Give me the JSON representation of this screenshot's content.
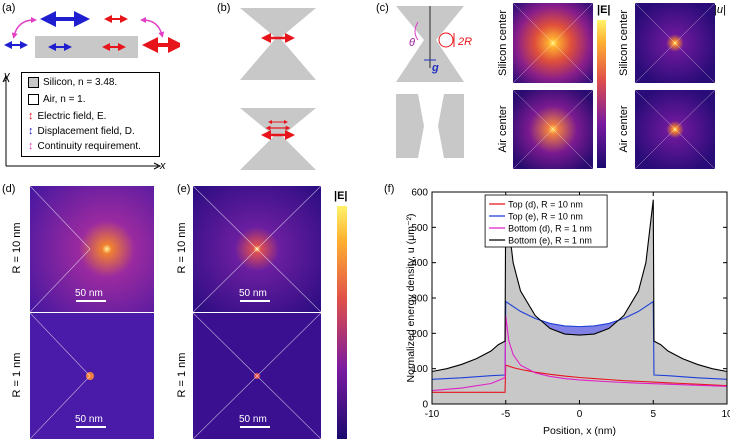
{
  "panel_labels": {
    "a": "(a)",
    "b": "(b)",
    "c": "(c)",
    "d": "(d)",
    "e": "(e)",
    "f": "(f)"
  },
  "panel_a": {
    "axis_y": "y",
    "axis_x": "x",
    "legend": [
      {
        "label": "Silicon, n = 3.48.",
        "kind": "swatch",
        "color": "#c8c8c8"
      },
      {
        "label": "Air, n = 1.",
        "kind": "swatch",
        "color": "#ffffff"
      },
      {
        "label": "Electric field, E.",
        "kind": "arrow",
        "color": "#e8141b"
      },
      {
        "label": "Displacement field, D.",
        "kind": "arrow",
        "color": "#1f1fcf"
      },
      {
        "label": "Continuity requirement.",
        "kind": "arrow",
        "color": "#e040c8"
      }
    ]
  },
  "panel_c": {
    "theta": "θ",
    "two_r": "2R",
    "g": "g",
    "row_labels": [
      "Silicon center",
      "Air center"
    ],
    "cbar1": "|E|",
    "cbar2": "|u|"
  },
  "panel_d": {
    "rows": [
      "R = 10 nm",
      "R = 1 nm"
    ],
    "scale": [
      "50 nm",
      "50 nm"
    ]
  },
  "panel_e": {
    "rows": [
      "R = 10 nm",
      "R = 1 nm"
    ],
    "scale": [
      "50 nm",
      "50 nm"
    ],
    "cbar": "|E|"
  },
  "chart_data": {
    "type": "line",
    "title": "",
    "xlabel": "Position, x (nm)",
    "ylabel": "Normalized energy density, u (μm⁻²)",
    "xlim": [
      -10,
      10
    ],
    "ylim": [
      0,
      600
    ],
    "xticks": [
      -10,
      -5,
      0,
      5,
      10
    ],
    "yticks": [
      0,
      100,
      200,
      300,
      400,
      500,
      600
    ],
    "legend_position": "top-left",
    "series": [
      {
        "name": "Top (d), R = 10 nm",
        "color": "#e8141b",
        "x": [
          -10,
          -5.05,
          -5.0,
          -4.5,
          -4,
          -3,
          -2,
          -1,
          0,
          1,
          2,
          3,
          4,
          5,
          6,
          7,
          8,
          9,
          10
        ],
        "y": [
          33,
          33,
          110,
          103,
          98,
          90,
          84,
          79,
          75,
          72,
          69,
          66,
          64,
          62,
          60,
          58,
          56,
          54,
          52
        ]
      },
      {
        "name": "Top (e), R = 10 nm",
        "color": "#1f3fd8",
        "x": [
          -10,
          -8,
          -6,
          -5.05,
          -5,
          -4,
          -3,
          -2,
          -1,
          0,
          1,
          2,
          3,
          4,
          5,
          5.05,
          6,
          8,
          10
        ],
        "y": [
          70,
          74,
          80,
          82,
          290,
          262,
          242,
          228,
          221,
          219,
          221,
          228,
          242,
          262,
          290,
          82,
          80,
          74,
          70
        ]
      },
      {
        "name": "Bottom (d), R = 1 nm",
        "color": "#e020c8",
        "x": [
          -10,
          -8,
          -6,
          -5.3,
          -5.05,
          -5,
          -4.8,
          -4.5,
          -4,
          -3,
          -2,
          -1,
          0,
          2,
          4,
          6,
          8,
          10
        ],
        "y": [
          38,
          45,
          58,
          70,
          75,
          250,
          180,
          140,
          110,
          88,
          78,
          72,
          68,
          63,
          59,
          56,
          53,
          50
        ]
      },
      {
        "name": "Bottom (e), R = 1 nm",
        "color": "#000000",
        "x": [
          -10,
          -9,
          -8,
          -7,
          -6,
          -5.5,
          -5.05,
          -5,
          -4.5,
          -4,
          -3,
          -2,
          -1,
          0,
          1,
          2,
          3,
          4,
          4.5,
          5,
          5.05,
          5.5,
          6,
          7,
          8,
          9,
          10
        ],
        "y": [
          92,
          100,
          112,
          128,
          150,
          168,
          178,
          578,
          400,
          320,
          250,
          214,
          198,
          195,
          198,
          214,
          250,
          320,
          400,
          578,
          178,
          168,
          150,
          128,
          112,
          100,
          92
        ]
      }
    ],
    "shaded_regions": [
      {
        "name": "Bottom (e) area",
        "color": "#c8c8c8"
      },
      {
        "name": "difference Top(e) - Bottom(e)",
        "color": "#6a6ae0"
      }
    ]
  }
}
